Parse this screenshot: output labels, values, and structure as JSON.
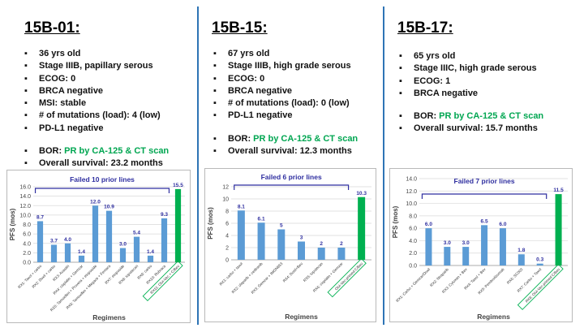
{
  "colors": {
    "accent": "#2e74b5",
    "bar": "#5b9bd5",
    "bar_highlight": "#00b050",
    "bracket": "#2f2fa0",
    "bor_value": "#00a651"
  },
  "patients": [
    {
      "title": "15B-01:",
      "facts": [
        "36 yrs old",
        "Stage IIIB, papillary serous",
        "ECOG: 0",
        "BRCA negative",
        "MSI: stable",
        "# of mutations (load): 4 (low)",
        "PD-L1 negative"
      ],
      "bor_label": "BOR: ",
      "bor_value": "PR by CA-125 & CT scan",
      "survival": "Overall survival: 23.2 months"
    },
    {
      "title": "15B-15:",
      "facts": [
        "67 yrs old",
        "Stage IIIB, high grade serous",
        "ECOG: 0",
        "BRCA negative",
        "# of mutations (load): 0 (low)",
        "PD-L1 negative"
      ],
      "bor_label": "BOR: ",
      "bor_value": "PR by CA-125 & CT scan",
      "survival": "Overall survival: 12.3 months"
    },
    {
      "title": "15B-17:",
      "facts": [
        "65 yrs old",
        "Stage IIIC, high grade serous",
        "ECOG: 1",
        "BRCA negative"
      ],
      "bor_label": "BOR: ",
      "bor_value": "PR by CA-125 & CT scan",
      "survival": "Overall survival: 15.7 months"
    }
  ],
  "chart_data": [
    {
      "type": "bar",
      "title": "",
      "bracket_label": "Failed 10 prior lines",
      "xlabel": "Regimens",
      "ylabel": "PFS (mos)",
      "ylim": [
        0,
        16
      ],
      "yticks": [
        "0.0",
        "2.0",
        "4.0",
        "6.0",
        "8.0",
        "10.0",
        "12.0",
        "14.0",
        "16.0"
      ],
      "categories": [
        "RX1: Taxol + carbo",
        "RX2: Doxil + carbo",
        "RX3: Avastin",
        "RX4: cisplatin + Gemzar",
        "RX5: Tamoxifen + Provera + etoposide",
        "RX6: Tamoxifen + Megace + Femara",
        "RX7: etoposide",
        "RX8: topotecan",
        "RX9: carbo",
        "RX10: Rubraca",
        "RX11: Olvi-Vec + C/Bev"
      ],
      "values": [
        8.7,
        3.7,
        4.0,
        1.4,
        12.0,
        10.9,
        3.0,
        5.4,
        1.4,
        9.3,
        15.5
      ],
      "labels": [
        "8.7",
        "3.7",
        "4.0",
        "1.4",
        "12.0",
        "10.9",
        "3.0",
        "5.4",
        "1.4",
        "9.3",
        "15.5"
      ]
    },
    {
      "type": "bar",
      "title": "",
      "bracket_label": "Failed 6 prior lines",
      "xlabel": "Regimens",
      "ylabel": "PFS (mos)",
      "ylim": [
        0,
        12
      ],
      "yticks": [
        "0",
        "2",
        "4",
        "6",
        "8",
        "10",
        "12"
      ],
      "categories": [
        "RX1: carbo + taxol",
        "RX2: olaparib + cediranib",
        "RX3: Gemzar + IMGN853",
        "RX4: Doxil+Bev",
        "RX5: topotecan",
        "RX6: cisplatin + Gemzar",
        "Olvi-Vec-primed C/Bev"
      ],
      "values": [
        8.1,
        6.1,
        5,
        3,
        2,
        2,
        10.3
      ],
      "labels": [
        "8.1",
        "6.1",
        "5",
        "3",
        "2",
        "2",
        "10.3"
      ]
    },
    {
      "type": "bar",
      "title": "",
      "bracket_label": "Failed 7 prior lines",
      "xlabel": "Regimens",
      "ylabel": "PFS (mos)",
      "ylim": [
        0,
        14
      ],
      "yticks": [
        "0.0",
        "2.0",
        "4.0",
        "6.0",
        "8.0",
        "10.0",
        "12.0",
        "14.0"
      ],
      "categories": [
        "RX1: Carbo + Gemzar/Doxil",
        "RX2: Niraparib",
        "RX3: Cytoxan + Bev",
        "RX4: Taxol + Bev",
        "RX5: Pembrolizumab",
        "RX6: SC003",
        "RX7: Carbo + Taxol",
        "RX8: Olvi-Vec-primed C/Bev"
      ],
      "values": [
        6.0,
        3.0,
        3.0,
        6.5,
        6.0,
        1.8,
        0.3,
        11.5
      ],
      "labels": [
        "6.0",
        "3.0",
        "3.0",
        "6.5",
        "6.0",
        "1.8",
        "0.3",
        "11.5"
      ]
    }
  ]
}
